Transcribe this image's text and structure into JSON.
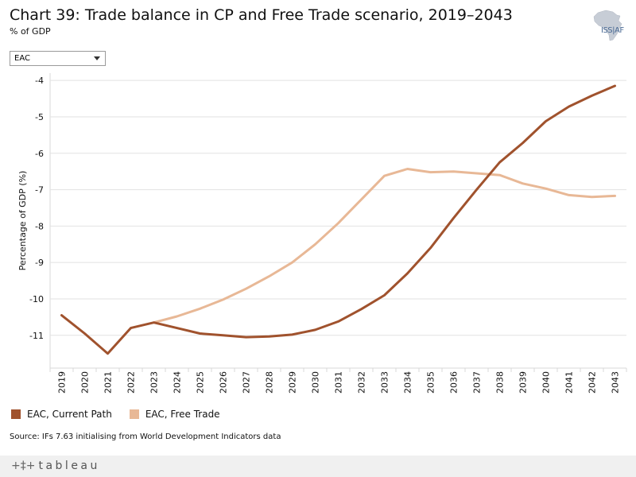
{
  "header": {
    "title": "Chart 39: Trade balance in CP and Free Trade scenario, 2019–2043",
    "subtitle": "% of GDP"
  },
  "logo": {
    "text": "ISS|AF"
  },
  "filter": {
    "selected": "EAC"
  },
  "legend": {
    "items": [
      {
        "label": "EAC, Current Path",
        "color": "#a0522d"
      },
      {
        "label": "EAC, Free Trade",
        "color": "#e8b896"
      }
    ]
  },
  "source": "Source: IFs 7.63 initialising from World Development Indicators data",
  "footer": {
    "brand": "tableau"
  },
  "chart_data": {
    "type": "line",
    "ylabel": "Percentage of GDP (%)",
    "ylim": [
      -11.9,
      -3.8
    ],
    "yticks": [
      -4,
      -5,
      -6,
      -7,
      -8,
      -9,
      -10,
      -11
    ],
    "grid": true,
    "legend_position": "bottom-left",
    "x": [
      "2019",
      "2020",
      "2021",
      "2022",
      "2023",
      "2024",
      "2025",
      "2026",
      "2027",
      "2028",
      "2029",
      "2030",
      "2031",
      "2032",
      "2033",
      "2034",
      "2035",
      "2036",
      "2037",
      "2038",
      "2039",
      "2040",
      "2041",
      "2042",
      "2043"
    ],
    "series": [
      {
        "name": "EAC, Current Path",
        "color": "#a0522d",
        "values": [
          -10.45,
          -10.95,
          -11.5,
          -10.8,
          -10.65,
          -10.8,
          -10.95,
          -11.0,
          -11.05,
          -11.03,
          -10.98,
          -10.85,
          -10.62,
          -10.28,
          -9.9,
          -9.3,
          -8.6,
          -7.78,
          -7.0,
          -6.25,
          -5.72,
          -5.12,
          -4.72,
          -4.42,
          -4.15
        ]
      },
      {
        "name": "EAC, Free Trade",
        "color": "#e8b896",
        "values": [
          null,
          null,
          null,
          null,
          -10.65,
          -10.48,
          -10.27,
          -10.02,
          -9.72,
          -9.38,
          -9.0,
          -8.5,
          -7.92,
          -7.27,
          -6.62,
          -6.43,
          -6.52,
          -6.5,
          -6.55,
          -6.6,
          -6.83,
          -6.97,
          -7.15,
          -7.2,
          -7.17
        ]
      }
    ]
  }
}
